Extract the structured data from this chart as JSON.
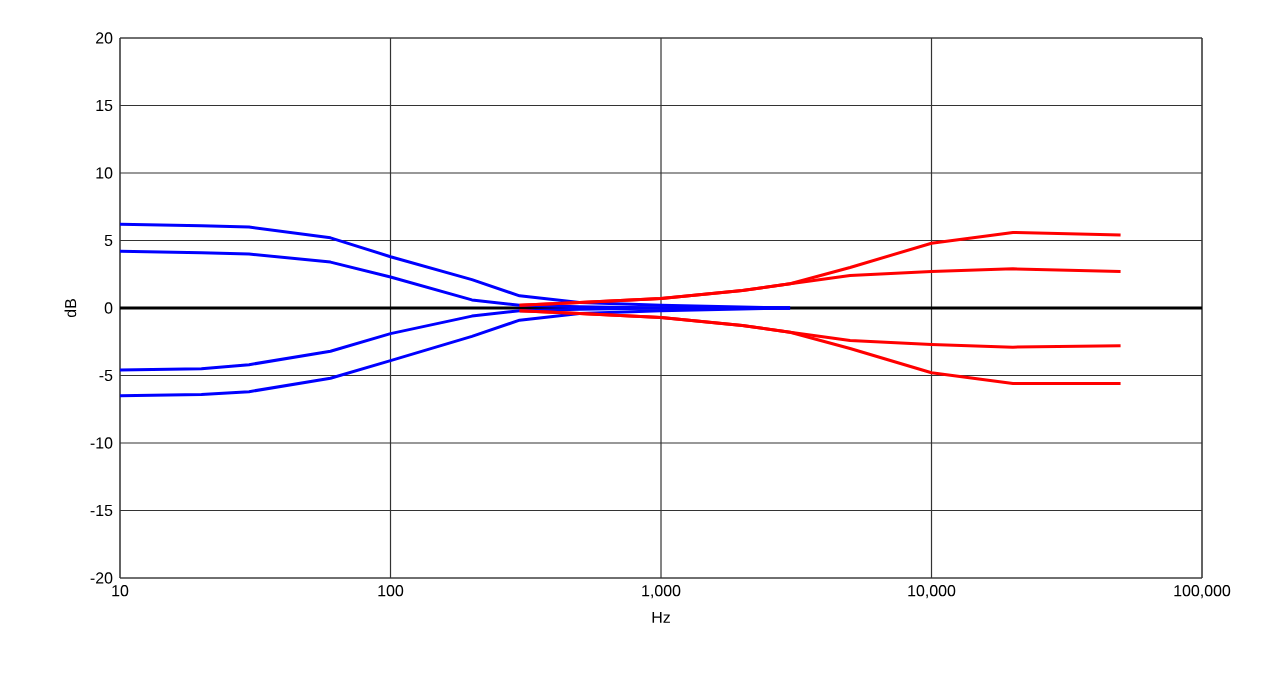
{
  "chart_data": {
    "type": "line",
    "xlabel": "Hz",
    "ylabel": "dB",
    "log": "x",
    "grid": true,
    "xlim": [
      10,
      100000
    ],
    "ylim": [
      -20,
      20
    ],
    "xticks": [
      10,
      100,
      {
        "value": 1000,
        "label": "1,000"
      },
      {
        "value": 10000,
        "label": "10,000"
      },
      {
        "value": 100000,
        "label": "100,000"
      }
    ],
    "yticks": [
      -20,
      -15,
      -10,
      -5,
      0,
      5,
      10,
      15,
      20
    ],
    "ref_lines": [
      {
        "axis": "y",
        "value": 0,
        "color": "#000000"
      }
    ],
    "series": [
      {
        "color": "#0000ff",
        "x": [
          10,
          20,
          30,
          60,
          100,
          200,
          300,
          500,
          1000,
          3000
        ],
        "values": [
          6.2,
          6.1,
          6.0,
          5.2,
          3.8,
          2.1,
          0.9,
          0.4,
          0.2,
          0
        ]
      },
      {
        "color": "#0000ff",
        "x": [
          10,
          20,
          30,
          60,
          100,
          200,
          300,
          500,
          1000,
          3000
        ],
        "values": [
          4.2,
          4.1,
          4.0,
          3.4,
          2.3,
          0.6,
          0.2,
          0.1,
          0,
          0
        ]
      },
      {
        "color": "#0000ff",
        "x": [
          10,
          20,
          30,
          60,
          100,
          200,
          300,
          500,
          1000,
          3000
        ],
        "values": [
          -4.6,
          -4.5,
          -4.2,
          -3.2,
          -1.9,
          -0.6,
          -0.2,
          -0.1,
          0,
          0
        ]
      },
      {
        "color": "#0000ff",
        "x": [
          10,
          20,
          30,
          60,
          100,
          200,
          300,
          500,
          1000,
          3000
        ],
        "values": [
          -6.5,
          -6.4,
          -6.2,
          -5.2,
          -3.9,
          -2.1,
          -0.9,
          -0.4,
          -0.2,
          0
        ]
      },
      {
        "color": "#ff0000",
        "x": [
          300,
          500,
          1000,
          2000,
          3000,
          5000,
          10000,
          20000,
          50000
        ],
        "values": [
          0.2,
          0.4,
          0.7,
          1.3,
          1.8,
          3.0,
          4.8,
          5.6,
          5.4
        ]
      },
      {
        "color": "#ff0000",
        "x": [
          300,
          500,
          1000,
          2000,
          3000,
          5000,
          10000,
          20000,
          50000
        ],
        "values": [
          0.2,
          0.4,
          0.7,
          1.3,
          1.8,
          2.4,
          2.7,
          2.9,
          2.7
        ]
      },
      {
        "color": "#ff0000",
        "x": [
          300,
          500,
          1000,
          2000,
          3000,
          5000,
          10000,
          20000,
          50000
        ],
        "values": [
          -0.2,
          -0.4,
          -0.7,
          -1.3,
          -1.8,
          -2.4,
          -2.7,
          -2.9,
          -2.8
        ]
      },
      {
        "color": "#ff0000",
        "x": [
          300,
          500,
          1000,
          2000,
          3000,
          5000,
          10000,
          20000,
          50000
        ],
        "values": [
          -0.2,
          -0.4,
          -0.7,
          -1.3,
          -1.8,
          -3.0,
          -4.8,
          -5.6,
          -5.6
        ]
      }
    ]
  }
}
